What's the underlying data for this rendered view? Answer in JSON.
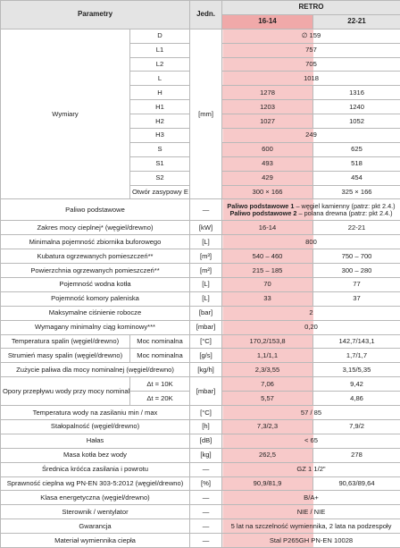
{
  "header": {
    "parametry": "Parametry",
    "jedn": "Jedn.",
    "model": "RETRO",
    "variants": [
      "16-14",
      "22-21"
    ]
  },
  "dimensions": {
    "label": "Wymiary",
    "unit": "[mm]",
    "rows": [
      {
        "name": "D",
        "values": [
          "∅ 159"
        ]
      },
      {
        "name": "L1",
        "values": [
          "757"
        ]
      },
      {
        "name": "L2",
        "values": [
          "705"
        ]
      },
      {
        "name": "L",
        "values": [
          "1018"
        ]
      },
      {
        "name": "H",
        "values": [
          "1278",
          "1316"
        ]
      },
      {
        "name": "H1",
        "values": [
          "1203",
          "1240"
        ]
      },
      {
        "name": "H2",
        "values": [
          "1027",
          "1052"
        ]
      },
      {
        "name": "H3",
        "values": [
          "249"
        ]
      },
      {
        "name": "S",
        "values": [
          "600",
          "625"
        ]
      },
      {
        "name": "S1",
        "values": [
          "493",
          "518"
        ]
      },
      {
        "name": "S2",
        "values": [
          "429",
          "454"
        ]
      },
      {
        "name": "Otwór zasypowy E",
        "values": [
          "300 × 166",
          "325 × 166"
        ]
      }
    ]
  },
  "rows": [
    {
      "param": "Paliwo podstawowe",
      "unit": "—",
      "lines": [
        {
          "bold": "Paliwo podstawowe 1",
          "rest": " – węgiel kamienny (patrz: pkt 2.4.)"
        },
        {
          "bold": "Paliwo podstawowe 2",
          "rest": " – polana drewna (patrz: pkt 2.4.)"
        }
      ]
    },
    {
      "param": "Zakres mocy cieplnej* (węgiel/drewno)",
      "unit": "[kW]",
      "values": [
        "16-14",
        "22-21"
      ]
    },
    {
      "param": "Minimalna pojemność zbiornika buforowego",
      "unit": "[L]",
      "values": [
        "800"
      ]
    },
    {
      "param": "Kubatura ogrzewanych pomieszczeń**",
      "unit": "[m³]",
      "values": [
        "540 – 460",
        "750 – 700"
      ]
    },
    {
      "param": "Powierzchnia ogrzewanych pomieszczeń**",
      "unit": "[m²]",
      "values": [
        "215 – 185",
        "300 – 280"
      ]
    },
    {
      "param": "Pojemność wodna kotła",
      "unit": "[L]",
      "values": [
        "70",
        "77"
      ]
    },
    {
      "param": "Pojemność komory paleniska",
      "unit": "[L]",
      "values": [
        "33",
        "37"
      ]
    },
    {
      "param": "Maksymalne ciśnienie robocze",
      "unit": "[bar]",
      "values": [
        "2"
      ]
    },
    {
      "param": "Wymagany minimalny ciąg kominowy***",
      "unit": "[mbar]",
      "values": [
        "0,20"
      ]
    },
    {
      "param": "Temperatura spalin (węgiel/drewno)",
      "sub": "Moc nominalna",
      "unit": "[°C]",
      "values": [
        "170,2/153,8",
        "142,7/143,1"
      ]
    },
    {
      "param": "Strumień masy spalin (węgiel/drewno)",
      "sub": "Moc nominalna",
      "unit": "[g/s]",
      "values": [
        "1,1/1,1",
        "1,7/1,7"
      ]
    },
    {
      "param": "Zużycie paliwa dla mocy nominalnej (węgiel/drewno)",
      "unit": "[kg/h]",
      "values": [
        "2,3/3,55",
        "3,15/5,35"
      ]
    },
    {
      "param": "Opory przepływu wody przy mocy nominalnej",
      "unit": "[mbar]",
      "subrows": [
        {
          "sub": "Δt = 10K",
          "values": [
            "7,06",
            "9,42"
          ]
        },
        {
          "sub": "Δt = 20K",
          "values": [
            "5,57",
            "4,86"
          ]
        }
      ]
    },
    {
      "param": "Temperatura wody na zasilaniu min / max",
      "unit": "[°C]",
      "values": [
        "57 / 85"
      ]
    },
    {
      "param": "Stałopalność (węgiel/drewno)",
      "unit": "[h]",
      "values": [
        "7,3/2,3",
        "7,9/2"
      ]
    },
    {
      "param": "Hałas",
      "unit": "[dB]",
      "values": [
        "< 65"
      ]
    },
    {
      "param": "Masa kotła bez wody",
      "unit": "[kg]",
      "values": [
        "262,5",
        "278"
      ]
    },
    {
      "param": "Średnica króćca zasilania i powrotu",
      "unit": "—",
      "values": [
        "GZ 1 1/2\""
      ]
    },
    {
      "param": "Sprawność cieplna wg PN-EN 303-5:2012 (węgiel/drewno)",
      "unit": "[%]",
      "values": [
        "90,9/81,9",
        "90,63/89,64"
      ]
    },
    {
      "param": "Klasa energetyczna (węgiel/drewno)",
      "unit": "—",
      "values": [
        "B/A+"
      ]
    },
    {
      "param": "Sterownik / wentylator",
      "unit": "—",
      "values": [
        "NIE / NIE"
      ]
    },
    {
      "param": "Gwarancja",
      "unit": "—",
      "values": [
        "5 lat na szczelność wymiennika, 2 lata na podzespoły"
      ]
    },
    {
      "param": "Materiał wymiennika ciepła",
      "unit": "—",
      "values": [
        "Stal P265GH PN-EN 10028"
      ]
    }
  ]
}
